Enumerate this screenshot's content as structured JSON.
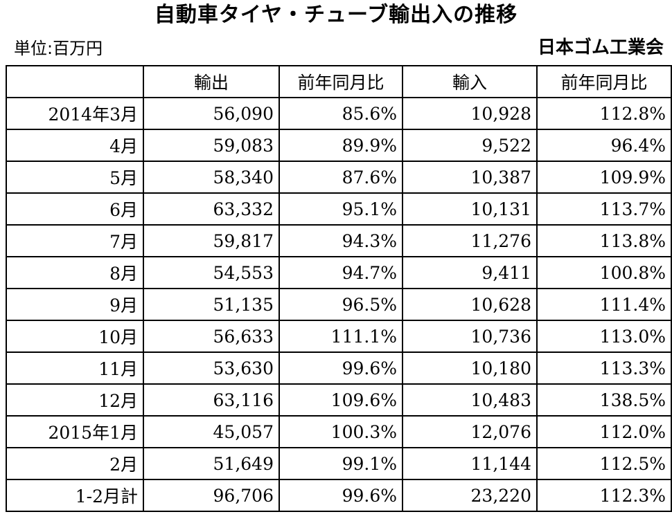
{
  "header": {
    "title": "自動車タイヤ・チューブ輸出入の推移",
    "unit_label": "単位:百万円",
    "source": "日本ゴム工業会"
  },
  "table": {
    "columns": [
      "",
      "輸出",
      "前年同月比",
      "輸入",
      "前年同月比"
    ],
    "rows": [
      [
        "2014年3月",
        "56,090",
        "85.6%",
        "10,928",
        "112.8%"
      ],
      [
        "4月",
        "59,083",
        "89.9%",
        "9,522",
        "96.4%"
      ],
      [
        "5月",
        "58,340",
        "87.6%",
        "10,387",
        "109.9%"
      ],
      [
        "6月",
        "63,332",
        "95.1%",
        "10,131",
        "113.7%"
      ],
      [
        "7月",
        "59,817",
        "94.3%",
        "11,276",
        "113.8%"
      ],
      [
        "8月",
        "54,553",
        "94.7%",
        "9,411",
        "100.8%"
      ],
      [
        "9月",
        "51,135",
        "96.5%",
        "10,628",
        "111.4%"
      ],
      [
        "10月",
        "56,633",
        "111.1%",
        "10,736",
        "113.0%"
      ],
      [
        "11月",
        "53,630",
        "99.6%",
        "10,180",
        "113.3%"
      ],
      [
        "12月",
        "63,116",
        "109.6%",
        "10,483",
        "138.5%"
      ],
      [
        "2015年1月",
        "45,057",
        "100.3%",
        "12,076",
        "112.0%"
      ],
      [
        "2月",
        "51,649",
        "99.1%",
        "11,144",
        "112.5%"
      ],
      [
        "1-2月計",
        "96,706",
        "99.6%",
        "23,220",
        "112.3%"
      ]
    ]
  }
}
